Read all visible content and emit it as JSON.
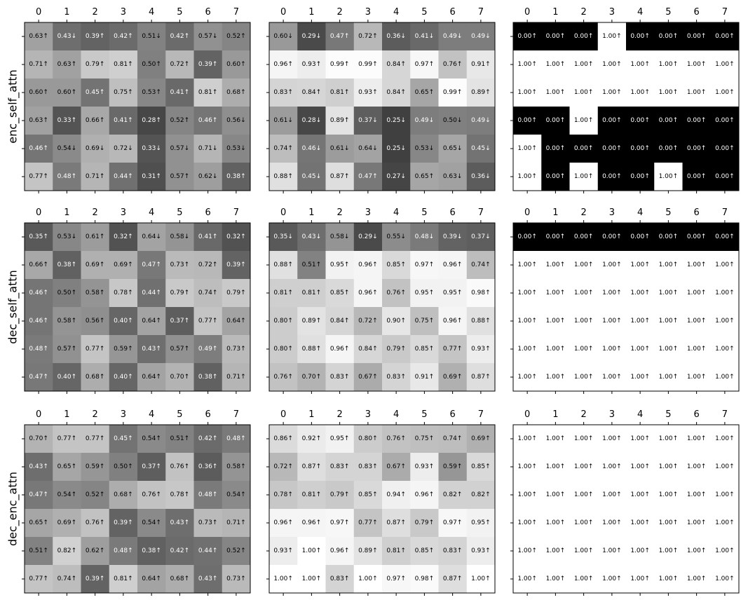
{
  "chart_data": {
    "type": "heatmap",
    "colormap": "grayscale (black = 0, white = 1)",
    "x_tick_labels": [
      "0",
      "1",
      "2",
      "3",
      "4",
      "5",
      "6",
      "7"
    ],
    "row_labels": [
      "enc_self_attn",
      "dec_self_attn",
      "dec_enc_attn"
    ],
    "panels": [
      {
        "row_label": "enc_self_attn",
        "heatmaps": [
          {
            "cells": [
              [
                "0.63↑",
                "0.43↓",
                "0.39↑",
                "0.42↑",
                "0.51↓",
                "0.42↑",
                "0.57↓",
                "0.52↑"
              ],
              [
                "0.71↑",
                "0.63↑",
                "0.79↑",
                "0.81↑",
                "0.50↑",
                "0.72↑",
                "0.39↑",
                "0.60↑"
              ],
              [
                "0.60↑",
                "0.60↑",
                "0.45↑",
                "0.75↑",
                "0.53↑",
                "0.41↑",
                "0.81↑",
                "0.68↑"
              ],
              [
                "0.63↑",
                "0.33↑",
                "0.66↑",
                "0.41↑",
                "0.28↑",
                "0.52↑",
                "0.46↑",
                "0.56↓"
              ],
              [
                "0.46↑",
                "0.54↓",
                "0.69↓",
                "0.72↓",
                "0.33↓",
                "0.57↓",
                "0.71↓",
                "0.53↓"
              ],
              [
                "0.77↑",
                "0.48↑",
                "0.71↑",
                "0.44↑",
                "0.31↑",
                "0.57↑",
                "0.62↓",
                "0.38↑"
              ]
            ]
          },
          {
            "cells": [
              [
                "0.60↓",
                "0.29↓",
                "0.47↑",
                "0.72↑",
                "0.36↓",
                "0.41↓",
                "0.49↓",
                "0.49↓"
              ],
              [
                "0.96↑",
                "0.93↑",
                "0.99↑",
                "0.99↑",
                "0.84↑",
                "0.97↑",
                "0.76↑",
                "0.91↑"
              ],
              [
                "0.83↑",
                "0.84↑",
                "0.81↑",
                "0.93↑",
                "0.84↑",
                "0.65↑",
                "0.99↑",
                "0.89↑"
              ],
              [
                "0.61↓",
                "0.28↓",
                "0.89↑",
                "0.37↓",
                "0.25↓",
                "0.49↓",
                "0.50↓",
                "0.49↓"
              ],
              [
                "0.74↑",
                "0.46↓",
                "0.61↓",
                "0.64↓",
                "0.25↓",
                "0.53↓",
                "0.65↓",
                "0.45↓"
              ],
              [
                "0.88↑",
                "0.45↓",
                "0.87↑",
                "0.47↑",
                "0.27↓",
                "0.65↑",
                "0.63↓",
                "0.36↓"
              ]
            ]
          },
          {
            "cells": [
              [
                "0.00↑",
                "0.00↑",
                "0.00↑",
                "1.00↑",
                "0.00↑",
                "0.00↑",
                "0.00↑",
                "0.00↑"
              ],
              [
                "1.00↑",
                "1.00↑",
                "1.00↑",
                "1.00↑",
                "1.00↑",
                "1.00↑",
                "1.00↑",
                "1.00↑"
              ],
              [
                "1.00↑",
                "1.00↑",
                "1.00↑",
                "1.00↑",
                "1.00↑",
                "1.00↑",
                "1.00↑",
                "1.00↑"
              ],
              [
                "0.00↑",
                "0.00↑",
                "1.00↑",
                "0.00↑",
                "0.00↑",
                "0.00↑",
                "0.00↑",
                "0.00↑"
              ],
              [
                "1.00↑",
                "0.00↑",
                "0.00↑",
                "0.00↑",
                "0.00↑",
                "0.00↑",
                "0.00↑",
                "0.00↑"
              ],
              [
                "1.00↑",
                "0.00↑",
                "1.00↑",
                "0.00↑",
                "0.00↑",
                "1.00↑",
                "0.00↑",
                "0.00↑"
              ]
            ]
          }
        ]
      },
      {
        "row_label": "dec_self_attn",
        "heatmaps": [
          {
            "cells": [
              [
                "0.35↑",
                "0.53↓",
                "0.61↑",
                "0.32↑",
                "0.64↓",
                "0.58↓",
                "0.41↑",
                "0.32↑"
              ],
              [
                "0.66↑",
                "0.38↑",
                "0.69↑",
                "0.69↑",
                "0.47↑",
                "0.73↑",
                "0.72↑",
                "0.39↑"
              ],
              [
                "0.46↑",
                "0.50↑",
                "0.58↑",
                "0.78↑",
                "0.44↑",
                "0.79↑",
                "0.74↑",
                "0.79↑"
              ],
              [
                "0.46↑",
                "0.58↑",
                "0.56↑",
                "0.40↑",
                "0.64↑",
                "0.37↑",
                "0.77↑",
                "0.64↑"
              ],
              [
                "0.48↑",
                "0.57↑",
                "0.77↑",
                "0.59↑",
                "0.43↑",
                "0.57↑",
                "0.49↑",
                "0.73↑"
              ],
              [
                "0.47↑",
                "0.40↑",
                "0.68↑",
                "0.40↑",
                "0.64↑",
                "0.70↑",
                "0.38↑",
                "0.71↑"
              ]
            ]
          },
          {
            "cells": [
              [
                "0.35↓",
                "0.43↓",
                "0.58↓",
                "0.29↓",
                "0.55↓",
                "0.48↓",
                "0.39↓",
                "0.37↓"
              ],
              [
                "0.88↑",
                "0.51↑",
                "0.95↑",
                "0.96↑",
                "0.85↑",
                "0.97↑",
                "0.96↑",
                "0.74↑"
              ],
              [
                "0.81↑",
                "0.81↑",
                "0.85↑",
                "0.96↑",
                "0.76↑",
                "0.95↑",
                "0.95↑",
                "0.98↑"
              ],
              [
                "0.80↑",
                "0.89↑",
                "0.84↑",
                "0.72↑",
                "0.90↑",
                "0.75↑",
                "0.96↑",
                "0.88↑"
              ],
              [
                "0.80↑",
                "0.88↑",
                "0.96↑",
                "0.84↑",
                "0.79↑",
                "0.85↑",
                "0.77↑",
                "0.93↑"
              ],
              [
                "0.76↑",
                "0.70↑",
                "0.83↑",
                "0.67↑",
                "0.83↑",
                "0.91↑",
                "0.69↑",
                "0.87↑"
              ]
            ]
          },
          {
            "cells": [
              [
                "0.00↑",
                "0.00↑",
                "0.00↑",
                "0.00↑",
                "0.00↑",
                "0.00↑",
                "0.00↑",
                "0.00↑"
              ],
              [
                "1.00↑",
                "1.00↑",
                "1.00↑",
                "1.00↑",
                "1.00↑",
                "1.00↑",
                "1.00↑",
                "1.00↑"
              ],
              [
                "1.00↑",
                "1.00↑",
                "1.00↑",
                "1.00↑",
                "1.00↑",
                "1.00↑",
                "1.00↑",
                "1.00↑"
              ],
              [
                "1.00↑",
                "1.00↑",
                "1.00↑",
                "1.00↑",
                "1.00↑",
                "1.00↑",
                "1.00↑",
                "1.00↑"
              ],
              [
                "1.00↑",
                "1.00↑",
                "1.00↑",
                "1.00↑",
                "1.00↑",
                "1.00↑",
                "1.00↑",
                "1.00↑"
              ],
              [
                "1.00↑",
                "1.00↑",
                "1.00↑",
                "1.00↑",
                "1.00↑",
                "1.00↑",
                "1.00↑",
                "1.00↑"
              ]
            ]
          }
        ]
      },
      {
        "row_label": "dec_enc_attn",
        "heatmaps": [
          {
            "cells": [
              [
                "0.70↑",
                "0.77↑",
                "0.77↑",
                "0.45↑",
                "0.54↑",
                "0.51↑",
                "0.42↑",
                "0.48↑"
              ],
              [
                "0.43↑",
                "0.65↑",
                "0.59↑",
                "0.50↑",
                "0.37↑",
                "0.76↑",
                "0.36↑",
                "0.58↑"
              ],
              [
                "0.47↑",
                "0.54↑",
                "0.52↑",
                "0.68↑",
                "0.76↑",
                "0.78↑",
                "0.48↑",
                "0.54↑"
              ],
              [
                "0.65↑",
                "0.69↑",
                "0.76↑",
                "0.39↑",
                "0.54↑",
                "0.43↑",
                "0.73↑",
                "0.71↑"
              ],
              [
                "0.51↑",
                "0.82↑",
                "0.62↑",
                "0.48↑",
                "0.38↑",
                "0.42↑",
                "0.44↑",
                "0.52↑"
              ],
              [
                "0.77↑",
                "0.74↑",
                "0.39↑",
                "0.81↑",
                "0.64↑",
                "0.68↑",
                "0.43↑",
                "0.73↑"
              ]
            ]
          },
          {
            "cells": [
              [
                "0.86↑",
                "0.92↑",
                "0.95↑",
                "0.80↑",
                "0.76↑",
                "0.75↑",
                "0.74↑",
                "0.69↑"
              ],
              [
                "0.72↑",
                "0.87↑",
                "0.83↑",
                "0.83↑",
                "0.67↑",
                "0.93↑",
                "0.59↑",
                "0.85↑"
              ],
              [
                "0.78↑",
                "0.81↑",
                "0.79↑",
                "0.85↑",
                "0.94↑",
                "0.96↑",
                "0.82↑",
                "0.82↑"
              ],
              [
                "0.96↑",
                "0.96↑",
                "0.97↑",
                "0.77↑",
                "0.87↑",
                "0.79↑",
                "0.97↑",
                "0.95↑"
              ],
              [
                "0.93↑",
                "1.00↑",
                "0.96↑",
                "0.89↑",
                "0.81↑",
                "0.85↑",
                "0.83↑",
                "0.93↑"
              ],
              [
                "1.00↑",
                "1.00↑",
                "0.83↑",
                "1.00↑",
                "0.97↑",
                "0.98↑",
                "0.87↑",
                "1.00↑"
              ]
            ]
          },
          {
            "cells": [
              [
                "1.00↑",
                "1.00↑",
                "1.00↑",
                "1.00↑",
                "1.00↑",
                "1.00↑",
                "1.00↑",
                "1.00↑"
              ],
              [
                "1.00↑",
                "1.00↑",
                "1.00↑",
                "1.00↑",
                "1.00↑",
                "1.00↑",
                "1.00↑",
                "1.00↑"
              ],
              [
                "1.00↑",
                "1.00↑",
                "1.00↑",
                "1.00↑",
                "1.00↑",
                "1.00↑",
                "1.00↑",
                "1.00↑"
              ],
              [
                "1.00↑",
                "1.00↑",
                "1.00↑",
                "1.00↑",
                "1.00↑",
                "1.00↑",
                "1.00↑",
                "1.00↑"
              ],
              [
                "1.00↑",
                "1.00↑",
                "1.00↑",
                "1.00↑",
                "1.00↑",
                "1.00↑",
                "1.00↑",
                "1.00↑"
              ],
              [
                "1.00↑",
                "1.00↑",
                "1.00↑",
                "1.00↑",
                "1.00↑",
                "1.00↑",
                "1.00↑",
                "1.00↑"
              ]
            ]
          }
        ]
      }
    ]
  }
}
